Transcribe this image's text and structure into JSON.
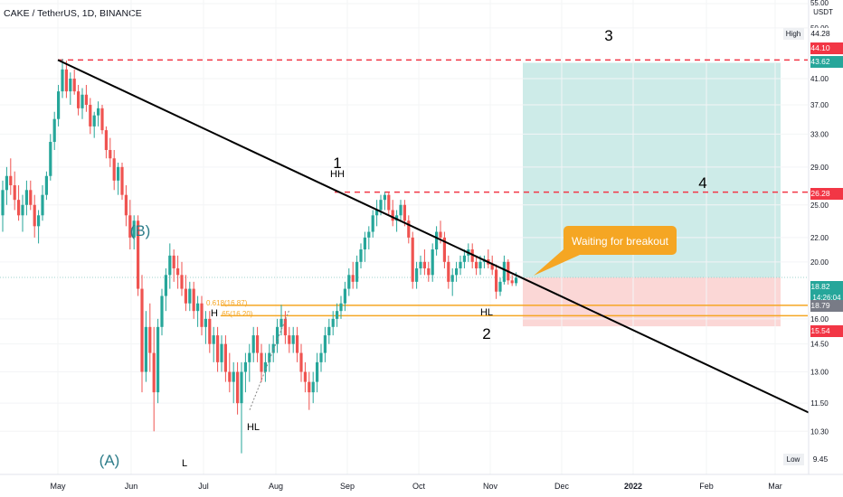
{
  "header": {
    "title": "CAKE / TetherUS, 1D, BINANCE"
  },
  "colors": {
    "up": "#26a69a",
    "down": "#ef5350",
    "trend": "#000000",
    "dashed": "#f23645",
    "fib": "#f5a623",
    "target_zone": "#cdebe8",
    "stop_zone": "#fbd7d6",
    "wave_label": "#2e7d8a",
    "callout": "#f5a623"
  },
  "chart_data": {
    "type": "candlestick",
    "pair": "CAKE / TetherUS",
    "interval": "1D",
    "exchange": "BINANCE",
    "y_axis": {
      "unit": "USDT",
      "scale": "log",
      "ticks": [
        "55.00",
        "50.00",
        "41.00",
        "37.00",
        "33.00",
        "29.00",
        "25.00",
        "22.00",
        "20.00",
        "16.00",
        "14.50",
        "13.00",
        "11.50",
        "10.30"
      ],
      "ylim": [
        8.7,
        55
      ]
    },
    "x_axis": {
      "ticks": [
        "May",
        "Jun",
        "Jul",
        "Aug",
        "Sep",
        "Oct",
        "Nov",
        "Dec",
        "2022",
        "Feb",
        "Mar"
      ]
    },
    "price_labels": [
      {
        "label": "High",
        "value": "44.28",
        "kind": "plain"
      },
      {
        "label": "",
        "value": "44.10",
        "kind": "red"
      },
      {
        "label": "",
        "value": "43.62",
        "kind": "teal"
      },
      {
        "label": "",
        "value": "26.28",
        "kind": "red"
      },
      {
        "label": "",
        "value": "18.82",
        "kind": "teal",
        "sub": "14:26:04"
      },
      {
        "label": "",
        "value": "18.79",
        "kind": "gray"
      },
      {
        "label": "",
        "value": "15.54",
        "kind": "red"
      },
      {
        "label": "Low",
        "value": "9.45",
        "kind": "plain"
      }
    ],
    "key_points": [
      {
        "label": "High",
        "date": "May 01",
        "price": 44.28
      },
      {
        "label": "(A)",
        "date": "May 23",
        "price": 10.3
      },
      {
        "label": "(B)",
        "date": "Jun 02",
        "price": 21.5
      },
      {
        "label": "L",
        "date": "Jun 22",
        "price": 9.45
      },
      {
        "label": "H",
        "date": "Jul 02",
        "price": 16.9
      },
      {
        "label": "HL",
        "date": "Jul 20",
        "price": 11.2
      },
      {
        "label": "HH",
        "date": "Aug 30",
        "price": 26.3
      },
      {
        "label": "HL",
        "date": "Nov 02",
        "price": 17.3
      }
    ],
    "trendline": {
      "from": {
        "date": "May 01",
        "price": 44.1
      },
      "to": {
        "date": "Mar 15",
        "price": 11.0
      }
    },
    "levels": [
      {
        "name": "dashed-high",
        "price": 44.1
      },
      {
        "name": "dashed-resistance",
        "price": 26.28
      },
      {
        "name": "fib-0.618",
        "price": 16.87,
        "text": "0.618(16.87)"
      },
      {
        "name": "fib-0.65",
        "price": 16.2,
        "text": "0.65(16.20)"
      }
    ],
    "position": {
      "entry": 18.82,
      "target": 43.62,
      "stop": 15.54
    },
    "annotations": [
      {
        "text": "1",
        "role": "wave"
      },
      {
        "text": "2",
        "role": "wave"
      },
      {
        "text": "3",
        "role": "wave"
      },
      {
        "text": "4",
        "role": "wave"
      },
      {
        "text": "HH",
        "role": "swing"
      },
      {
        "text": "HL",
        "role": "swing"
      },
      {
        "text": "HL",
        "role": "swing"
      },
      {
        "text": "H",
        "role": "swing"
      },
      {
        "text": "L",
        "role": "swing"
      },
      {
        "text": "(A)",
        "role": "elliott"
      },
      {
        "text": "(B)",
        "role": "elliott"
      },
      {
        "text": "0.618(16.87)",
        "role": "fib"
      },
      {
        "text": ".65(16.20)",
        "role": "fib"
      }
    ],
    "callout": {
      "text": "Waiting for breakout"
    },
    "ohlc": [
      [
        24.0,
        27.5,
        22.5,
        26.5
      ],
      [
        26.5,
        29.0,
        25.0,
        28.0
      ],
      [
        28.0,
        30.0,
        26.0,
        27.0
      ],
      [
        27.0,
        28.5,
        24.5,
        25.5
      ],
      [
        25.5,
        27.0,
        23.5,
        24.0
      ],
      [
        24.0,
        26.0,
        22.5,
        25.0
      ],
      [
        25.0,
        27.5,
        24.0,
        26.5
      ],
      [
        26.5,
        27.5,
        24.5,
        25.0
      ],
      [
        25.0,
        26.0,
        22.0,
        23.0
      ],
      [
        23.0,
        24.5,
        21.5,
        24.0
      ],
      [
        24.0,
        27.0,
        23.5,
        26.0
      ],
      [
        26.0,
        28.5,
        25.5,
        28.0
      ],
      [
        28.0,
        33.0,
        27.5,
        32.0
      ],
      [
        32.0,
        36.0,
        31.0,
        35.0
      ],
      [
        35.0,
        40.0,
        34.0,
        39.0
      ],
      [
        39.0,
        44.28,
        38.0,
        42.5
      ],
      [
        42.5,
        44.0,
        38.0,
        39.0
      ],
      [
        39.0,
        42.0,
        37.0,
        41.0
      ],
      [
        41.0,
        42.5,
        38.5,
        39.0
      ],
      [
        39.0,
        40.0,
        35.5,
        36.5
      ],
      [
        36.5,
        39.5,
        35.0,
        38.5
      ],
      [
        38.5,
        40.0,
        36.0,
        37.0
      ],
      [
        37.0,
        38.0,
        33.0,
        34.0
      ],
      [
        34.0,
        36.0,
        32.5,
        35.5
      ],
      [
        35.5,
        37.5,
        34.0,
        36.5
      ],
      [
        36.5,
        37.0,
        33.0,
        33.5
      ],
      [
        33.5,
        34.0,
        30.0,
        31.0
      ],
      [
        31.0,
        32.5,
        29.0,
        30.0
      ],
      [
        30.0,
        31.0,
        26.5,
        27.5
      ],
      [
        27.5,
        29.5,
        26.0,
        29.0
      ],
      [
        29.0,
        29.5,
        25.5,
        26.0
      ],
      [
        26.0,
        27.0,
        23.0,
        24.0
      ],
      [
        24.0,
        25.5,
        21.0,
        22.0
      ],
      [
        22.0,
        24.0,
        21.0,
        23.5
      ],
      [
        23.5,
        24.0,
        17.5,
        18.0
      ],
      [
        18.0,
        19.0,
        12.0,
        13.0
      ],
      [
        13.0,
        16.5,
        12.5,
        15.5
      ],
      [
        15.5,
        17.0,
        13.0,
        14.0
      ],
      [
        14.0,
        15.5,
        10.3,
        12.0
      ],
      [
        12.0,
        16.0,
        11.5,
        15.5
      ],
      [
        15.5,
        18.0,
        15.0,
        17.5
      ],
      [
        17.5,
        19.5,
        16.5,
        19.0
      ],
      [
        19.0,
        21.5,
        18.0,
        20.5
      ],
      [
        20.5,
        21.0,
        18.5,
        19.5
      ],
      [
        19.5,
        20.5,
        18.0,
        19.0
      ],
      [
        19.0,
        20.0,
        17.5,
        18.0
      ],
      [
        18.0,
        19.0,
        16.5,
        17.0
      ],
      [
        17.0,
        18.5,
        16.5,
        18.0
      ],
      [
        18.0,
        18.5,
        16.0,
        16.5
      ],
      [
        16.5,
        17.5,
        15.5,
        17.0
      ],
      [
        17.0,
        17.5,
        15.0,
        15.5
      ],
      [
        15.5,
        16.5,
        14.5,
        16.0
      ],
      [
        16.0,
        16.5,
        14.0,
        14.5
      ],
      [
        14.5,
        15.5,
        13.5,
        15.0
      ],
      [
        15.0,
        15.5,
        13.0,
        13.5
      ],
      [
        13.5,
        15.0,
        13.0,
        14.5
      ],
      [
        14.5,
        15.0,
        12.5,
        13.0
      ],
      [
        13.0,
        14.0,
        12.0,
        12.5
      ],
      [
        12.5,
        13.5,
        11.5,
        13.0
      ],
      [
        13.0,
        13.5,
        11.0,
        11.5
      ],
      [
        11.5,
        13.5,
        9.45,
        13.0
      ],
      [
        13.0,
        14.0,
        12.0,
        13.5
      ],
      [
        13.5,
        14.5,
        12.5,
        14.0
      ],
      [
        14.0,
        15.5,
        13.5,
        15.0
      ],
      [
        15.0,
        15.5,
        13.5,
        14.0
      ],
      [
        14.0,
        14.5,
        12.5,
        13.0
      ],
      [
        13.0,
        14.0,
        12.5,
        13.5
      ],
      [
        13.5,
        14.5,
        13.0,
        14.0
      ],
      [
        14.0,
        15.0,
        13.5,
        14.5
      ],
      [
        14.5,
        16.0,
        14.0,
        15.5
      ],
      [
        15.5,
        16.9,
        15.0,
        16.0
      ],
      [
        16.0,
        16.5,
        14.5,
        15.0
      ],
      [
        15.0,
        15.5,
        14.0,
        14.5
      ],
      [
        14.5,
        15.5,
        14.0,
        15.0
      ],
      [
        15.0,
        15.5,
        13.5,
        14.0
      ],
      [
        14.0,
        14.5,
        12.5,
        13.0
      ],
      [
        13.0,
        13.5,
        12.0,
        12.5
      ],
      [
        12.5,
        13.0,
        11.2,
        12.0
      ],
      [
        12.0,
        13.0,
        11.5,
        12.5
      ],
      [
        12.5,
        14.0,
        12.0,
        13.5
      ],
      [
        13.5,
        14.5,
        13.0,
        14.0
      ],
      [
        14.0,
        15.5,
        13.5,
        15.0
      ],
      [
        15.0,
        16.0,
        14.5,
        15.5
      ],
      [
        15.5,
        16.5,
        15.0,
        16.0
      ],
      [
        16.0,
        17.0,
        15.5,
        16.5
      ],
      [
        16.5,
        17.5,
        16.0,
        17.0
      ],
      [
        17.0,
        18.5,
        16.5,
        18.0
      ],
      [
        18.0,
        19.5,
        17.5,
        19.0
      ],
      [
        19.0,
        20.0,
        18.0,
        18.5
      ],
      [
        18.5,
        20.5,
        18.0,
        20.0
      ],
      [
        20.0,
        21.5,
        19.5,
        21.0
      ],
      [
        21.0,
        22.5,
        20.0,
        22.0
      ],
      [
        22.0,
        23.0,
        21.0,
        22.5
      ],
      [
        22.5,
        24.5,
        22.0,
        24.0
      ],
      [
        24.0,
        25.5,
        23.0,
        24.5
      ],
      [
        24.5,
        26.0,
        24.0,
        25.5
      ],
      [
        25.5,
        26.3,
        24.5,
        26.0
      ],
      [
        26.0,
        26.2,
        24.0,
        24.5
      ],
      [
        24.5,
        25.5,
        23.0,
        23.5
      ],
      [
        23.5,
        24.5,
        22.5,
        24.0
      ],
      [
        24.0,
        25.5,
        23.5,
        25.0
      ],
      [
        25.0,
        25.5,
        23.0,
        23.5
      ],
      [
        23.5,
        24.0,
        21.5,
        22.0
      ],
      [
        22.0,
        22.5,
        18.0,
        18.5
      ],
      [
        18.5,
        20.0,
        18.0,
        19.5
      ],
      [
        19.5,
        20.5,
        19.0,
        20.0
      ],
      [
        20.0,
        21.0,
        19.0,
        19.5
      ],
      [
        19.5,
        20.0,
        18.5,
        19.0
      ],
      [
        19.0,
        21.5,
        18.5,
        21.0
      ],
      [
        21.0,
        23.0,
        20.5,
        22.5
      ],
      [
        22.5,
        23.5,
        21.5,
        22.0
      ],
      [
        22.0,
        22.5,
        19.5,
        20.0
      ],
      [
        20.0,
        20.5,
        18.0,
        18.5
      ],
      [
        18.5,
        19.5,
        17.5,
        19.0
      ],
      [
        19.0,
        20.0,
        18.5,
        19.5
      ],
      [
        19.5,
        20.5,
        19.0,
        20.0
      ],
      [
        20.0,
        21.0,
        19.5,
        20.5
      ],
      [
        20.5,
        21.5,
        20.0,
        21.0
      ],
      [
        21.0,
        21.5,
        19.5,
        20.0
      ],
      [
        20.0,
        20.5,
        19.0,
        19.5
      ],
      [
        19.5,
        20.5,
        19.0,
        20.0
      ],
      [
        20.0,
        20.5,
        19.5,
        20.2
      ],
      [
        20.2,
        21.0,
        19.5,
        19.8
      ],
      [
        19.8,
        20.5,
        19.0,
        19.4
      ],
      [
        19.4,
        19.8,
        17.3,
        17.8
      ],
      [
        17.8,
        18.8,
        17.5,
        18.5
      ],
      [
        18.5,
        20.5,
        18.3,
        20.0
      ],
      [
        20.0,
        20.2,
        18.3,
        18.6
      ],
      [
        18.6,
        19.0,
        18.2,
        18.4
      ],
      [
        18.4,
        19.2,
        18.2,
        18.8
      ]
    ]
  }
}
